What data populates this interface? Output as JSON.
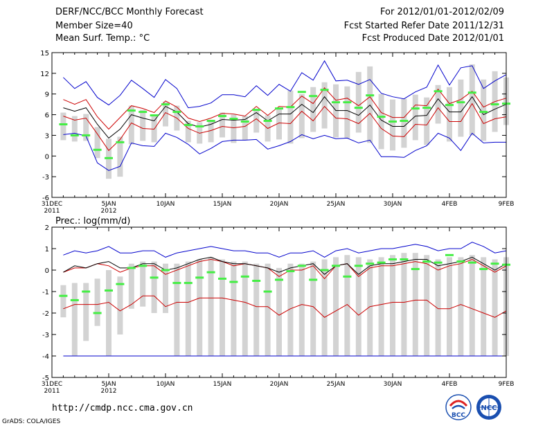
{
  "header": {
    "title": "DERF/NCC/BCC Monthly Forecast",
    "member_size": "Member Size=40",
    "panel1_label": "Mean Surf. Temp.: °C",
    "forecast_period": "For 2012/01/01-2012/02/09",
    "fcst_started": "Fcst Started Refer Date 2011/12/31",
    "fcst_produced": "Fcst Produced Date 2012/01/01"
  },
  "footer": {
    "url": "http://cmdp.ncc.cma.gov.cn",
    "grads": "GrADS: COLA/IGES",
    "logo1_text": "BCC",
    "logo2_text": "NCC"
  },
  "colors": {
    "upper": "#0000cc",
    "mean": "#000000",
    "spread": "#cc0000",
    "box": "#d3d3d3",
    "obs": "#44ee44"
  },
  "chart_data": [
    {
      "type": "box-line",
      "title": "Mean Surf. Temp.: °C",
      "x": [
        1,
        2,
        3,
        4,
        5,
        6,
        7,
        8,
        9,
        10,
        11,
        12,
        13,
        14,
        15,
        16,
        17,
        18,
        19,
        20,
        21,
        22,
        23,
        24,
        25,
        26,
        27,
        28,
        29,
        30,
        31,
        32,
        33,
        34,
        35,
        36,
        37,
        38,
        39,
        40
      ],
      "xlim": [
        0,
        40
      ],
      "ylim": [
        -6,
        15
      ],
      "yticks": [
        -6,
        -3,
        0,
        3,
        6,
        9,
        12,
        15
      ],
      "xticks": [
        {
          "x": 0,
          "l1": "31DEC",
          "l2": "2011"
        },
        {
          "x": 5,
          "l1": "5JAN",
          "l2": "2012"
        },
        {
          "x": 10,
          "l1": "10JAN",
          "l2": ""
        },
        {
          "x": 15,
          "l1": "15JAN",
          "l2": ""
        },
        {
          "x": 20,
          "l1": "20JAN",
          "l2": ""
        },
        {
          "x": 25,
          "l1": "25JAN",
          "l2": ""
        },
        {
          "x": 30,
          "l1": "30JAN",
          "l2": ""
        },
        {
          "x": 35,
          "l1": "4FEB",
          "l2": ""
        },
        {
          "x": 40,
          "l1": "9FEB",
          "l2": ""
        }
      ],
      "series": [
        {
          "name": "max",
          "color_key": "upper",
          "values": [
            11.4,
            9.8,
            10.8,
            8.5,
            7.4,
            8.8,
            11.0,
            9.8,
            8.5,
            11.1,
            9.8,
            7.0,
            7.2,
            7.7,
            8.9,
            8.9,
            8.6,
            10.2,
            8.8,
            10.4,
            9.4,
            12.1,
            11.0,
            13.8,
            10.9,
            11.0,
            10.4,
            11.1,
            9.1,
            8.6,
            8.3,
            9.3,
            10.0,
            13.2,
            10.3,
            12.8,
            13.1,
            9.8,
            10.9,
            11.8
          ]
        },
        {
          "name": "upper",
          "color_key": "spread",
          "values": [
            8.2,
            7.5,
            8.2,
            5.7,
            3.9,
            5.6,
            7.3,
            6.9,
            6.3,
            8.0,
            7.1,
            5.5,
            5.0,
            5.5,
            6.2,
            6.1,
            5.8,
            7.2,
            5.9,
            7.2,
            7.1,
            8.7,
            7.6,
            9.9,
            8.1,
            8.4,
            7.3,
            8.6,
            6.3,
            5.6,
            5.6,
            7.4,
            7.3,
            9.7,
            7.6,
            8.2,
            9.4,
            7.1,
            7.9,
            8.4
          ]
        },
        {
          "name": "mean",
          "color_key": "mean",
          "values": [
            7.0,
            6.5,
            7.0,
            4.6,
            2.6,
            3.9,
            6.0,
            5.5,
            5.1,
            7.2,
            6.4,
            4.7,
            4.2,
            4.6,
            5.3,
            5.2,
            5.3,
            6.3,
            5.1,
            6.1,
            6.1,
            7.5,
            6.3,
            8.6,
            6.6,
            6.6,
            5.9,
            7.4,
            5.2,
            4.3,
            4.3,
            5.8,
            5.9,
            8.3,
            6.4,
            6.4,
            8.6,
            6.0,
            6.8,
            7.5
          ]
        },
        {
          "name": "lower",
          "color_key": "spread",
          "values": [
            5.8,
            5.2,
            5.5,
            3.2,
            0.8,
            2.4,
            4.8,
            4.0,
            3.9,
            6.3,
            5.5,
            4.0,
            3.3,
            3.7,
            4.3,
            4.1,
            4.3,
            5.4,
            4.0,
            4.8,
            4.7,
            6.5,
            5.1,
            7.2,
            5.5,
            5.4,
            4.7,
            6.2,
            4.0,
            2.9,
            2.8,
            4.6,
            4.5,
            7.0,
            5.0,
            5.0,
            7.6,
            4.7,
            5.4,
            5.7
          ]
        },
        {
          "name": "min",
          "color_key": "upper",
          "values": [
            3.1,
            3.3,
            2.9,
            -1.0,
            -2.1,
            -1.5,
            1.9,
            1.5,
            1.4,
            3.3,
            2.7,
            1.7,
            0.3,
            1.1,
            2.1,
            2.3,
            2.3,
            2.4,
            1.0,
            1.5,
            2.1,
            3.1,
            2.5,
            3.0,
            2.5,
            2.6,
            1.9,
            2.3,
            -0.1,
            -0.1,
            -0.2,
            0.8,
            1.5,
            3.3,
            2.6,
            0.8,
            3.3,
            1.9,
            2.0,
            2.0
          ]
        }
      ],
      "boxes_low": [
        2.3,
        2.1,
        2.2,
        -0.3,
        -3.3,
        -3.0,
        1.7,
        2.2,
        2.0,
        4.3,
        3.7,
        2.0,
        1.8,
        2.0,
        2.7,
        1.9,
        2.3,
        3.4,
        2.1,
        2.4,
        1.8,
        2.6,
        3.5,
        4.0,
        2.7,
        2.6,
        3.4,
        1.9,
        1.0,
        0.8,
        1.2,
        2.3,
        1.6,
        4.7,
        2.1,
        2.8,
        3.0,
        2.2,
        3.5,
        4.5
      ],
      "boxes_high": [
        6.3,
        5.8,
        6.1,
        4.2,
        2.5,
        2.8,
        7.3,
        6.7,
        6.0,
        7.9,
        7.3,
        5.1,
        4.9,
        5.1,
        6.3,
        6.0,
        5.8,
        6.6,
        5.9,
        7.0,
        9.5,
        9.0,
        10.0,
        10.7,
        10.4,
        10.1,
        12.2,
        13.0,
        9.0,
        8.2,
        8.3,
        8.9,
        8.5,
        10.3,
        10.0,
        11.1,
        13.3,
        11.1,
        12.3,
        11.4
      ],
      "obs": [
        4.6,
        3.0,
        3.0,
        0.9,
        -0.3,
        2.0,
        6.6,
        6.4,
        5.9,
        7.5,
        6.4,
        4.5,
        4.3,
        5.1,
        5.8,
        5.4,
        5.0,
        6.7,
        5.1,
        6.9,
        7.1,
        9.3,
        8.7,
        9.6,
        7.8,
        7.8,
        7.0,
        8.8,
        5.7,
        5.0,
        5.1,
        6.9,
        7.0,
        9.4,
        7.4,
        7.8,
        9.2,
        6.4,
        7.5,
        7.6
      ]
    },
    {
      "type": "box-line",
      "title": "Prec.: log(mm/d)",
      "x": [
        1,
        2,
        3,
        4,
        5,
        6,
        7,
        8,
        9,
        10,
        11,
        12,
        13,
        14,
        15,
        16,
        17,
        18,
        19,
        20,
        21,
        22,
        23,
        24,
        25,
        26,
        27,
        28,
        29,
        30,
        31,
        32,
        33,
        34,
        35,
        36,
        37,
        38,
        39,
        40
      ],
      "xlim": [
        0,
        40
      ],
      "ylim": [
        -5,
        2
      ],
      "yticks": [
        -5,
        -4,
        -3,
        -2,
        -1,
        0,
        1,
        2
      ],
      "xticks": [
        {
          "x": 0,
          "l1": "31DEC",
          "l2": "2011"
        },
        {
          "x": 5,
          "l1": "5JAN",
          "l2": "2012"
        },
        {
          "x": 10,
          "l1": "10JAN",
          "l2": ""
        },
        {
          "x": 15,
          "l1": "15JAN",
          "l2": ""
        },
        {
          "x": 20,
          "l1": "20JAN",
          "l2": ""
        },
        {
          "x": 25,
          "l1": "25JAN",
          "l2": ""
        },
        {
          "x": 30,
          "l1": "30JAN",
          "l2": ""
        },
        {
          "x": 35,
          "l1": "4FEB",
          "l2": ""
        },
        {
          "x": 40,
          "l1": "9FEB",
          "l2": ""
        }
      ],
      "min_line": -4,
      "series": [
        {
          "name": "max",
          "color_key": "upper",
          "values": [
            0.7,
            0.9,
            0.8,
            0.9,
            1.1,
            0.8,
            0.8,
            0.9,
            0.9,
            0.6,
            0.8,
            0.9,
            1.0,
            1.1,
            1.0,
            0.9,
            0.9,
            0.8,
            0.8,
            0.6,
            0.8,
            0.8,
            0.9,
            0.6,
            0.9,
            1.0,
            0.8,
            0.9,
            1.0,
            1.0,
            1.1,
            1.2,
            1.1,
            0.9,
            1.0,
            1.0,
            1.3,
            1.1,
            0.8,
            0.9
          ]
        },
        {
          "name": "upper",
          "color_key": "spread",
          "values": [
            -0.1,
            0.1,
            0.1,
            0.3,
            0.2,
            -0.1,
            0.1,
            0.2,
            0.2,
            -0.2,
            0.0,
            0.2,
            0.4,
            0.5,
            0.4,
            0.2,
            0.3,
            0.2,
            0.1,
            -0.3,
            0.0,
            0.0,
            0.2,
            -0.4,
            0.2,
            0.3,
            -0.3,
            0.1,
            0.2,
            0.2,
            0.3,
            0.4,
            0.3,
            0.0,
            0.2,
            0.3,
            0.5,
            0.2,
            -0.1,
            0.2
          ]
        },
        {
          "name": "mean",
          "color_key": "mean",
          "values": [
            -0.1,
            0.2,
            0.1,
            0.3,
            0.4,
            0.1,
            0.1,
            0.3,
            0.3,
            0.0,
            0.1,
            0.3,
            0.5,
            0.6,
            0.4,
            0.3,
            0.3,
            0.2,
            0.1,
            -0.1,
            0.1,
            0.2,
            0.3,
            -0.2,
            0.2,
            0.3,
            -0.2,
            0.2,
            0.3,
            0.3,
            0.4,
            0.5,
            0.5,
            0.2,
            0.3,
            0.4,
            0.6,
            0.3,
            0.0,
            0.3
          ]
        },
        {
          "name": "lower",
          "color_key": "spread",
          "values": [
            -1.8,
            -1.6,
            -1.6,
            -1.6,
            -1.5,
            -1.9,
            -1.6,
            -1.2,
            -1.2,
            -1.7,
            -1.5,
            -1.5,
            -1.3,
            -1.3,
            -1.3,
            -1.4,
            -1.5,
            -1.7,
            -1.7,
            -2.1,
            -1.8,
            -1.6,
            -1.7,
            -2.2,
            -1.9,
            -1.6,
            -2.1,
            -1.7,
            -1.6,
            -1.5,
            -1.5,
            -1.4,
            -1.4,
            -1.8,
            -1.8,
            -1.6,
            -1.8,
            -2.0,
            -2.2,
            -1.9
          ]
        },
        {
          "name": "min",
          "color_key": "upper",
          "values": [
            -4,
            -4,
            -4,
            -4,
            -4,
            -4,
            -4,
            -4,
            -4,
            -4,
            -4,
            -4,
            -4,
            -4,
            -4,
            -4,
            -4,
            -4,
            -4,
            -4,
            -4,
            -4,
            -4,
            -4,
            -4,
            -4,
            -4,
            -4,
            -4,
            -4,
            -4,
            -4,
            -4,
            -4,
            -4,
            -4,
            -4,
            -4,
            -4,
            -4
          ]
        }
      ],
      "boxes_low": [
        -2.2,
        -4.0,
        -3.3,
        -2.6,
        -4.0,
        -3.0,
        -1.8,
        -1.7,
        -2.0,
        -2.0,
        -4.0,
        -4.0,
        -4.0,
        -4.0,
        -4.0,
        -4.0,
        -4.0,
        -4.0,
        -4.0,
        -4.0,
        -4.0,
        -4.0,
        -4.0,
        -4.0,
        -4.0,
        -4.0,
        -4.0,
        -4.0,
        -4.0,
        -4.0,
        -4.0,
        -4.0,
        -4.0,
        -4.0,
        -4.0,
        -4.0,
        -4.0,
        -4.0,
        -4.0,
        -4.0
      ],
      "boxes_high": [
        -0.7,
        -0.6,
        -0.6,
        -0.4,
        0.0,
        -0.3,
        0.3,
        0.4,
        0.4,
        0.3,
        0.3,
        0.4,
        0.5,
        0.6,
        0.5,
        0.4,
        0.4,
        0.3,
        0.3,
        0.1,
        0.3,
        0.3,
        0.4,
        0.5,
        0.6,
        0.7,
        0.6,
        0.5,
        0.6,
        0.7,
        0.8,
        0.8,
        0.7,
        0.5,
        0.6,
        0.6,
        0.7,
        0.6,
        0.5,
        0.6
      ],
      "obs": [
        -1.2,
        -1.4,
        -1.0,
        -2.0,
        -0.95,
        -0.65,
        0.1,
        0.2,
        -0.35,
        0.0,
        -0.6,
        -0.6,
        -0.35,
        -0.1,
        -0.4,
        -0.55,
        -0.3,
        -0.5,
        -1.0,
        -0.45,
        -0.05,
        0.2,
        -0.45,
        0.0,
        0.2,
        -0.3,
        0.2,
        0.3,
        0.35,
        0.5,
        0.5,
        0.05,
        0.4,
        0.35,
        0.7,
        0.4,
        0.35,
        0.05,
        0.3,
        0.25
      ]
    }
  ]
}
